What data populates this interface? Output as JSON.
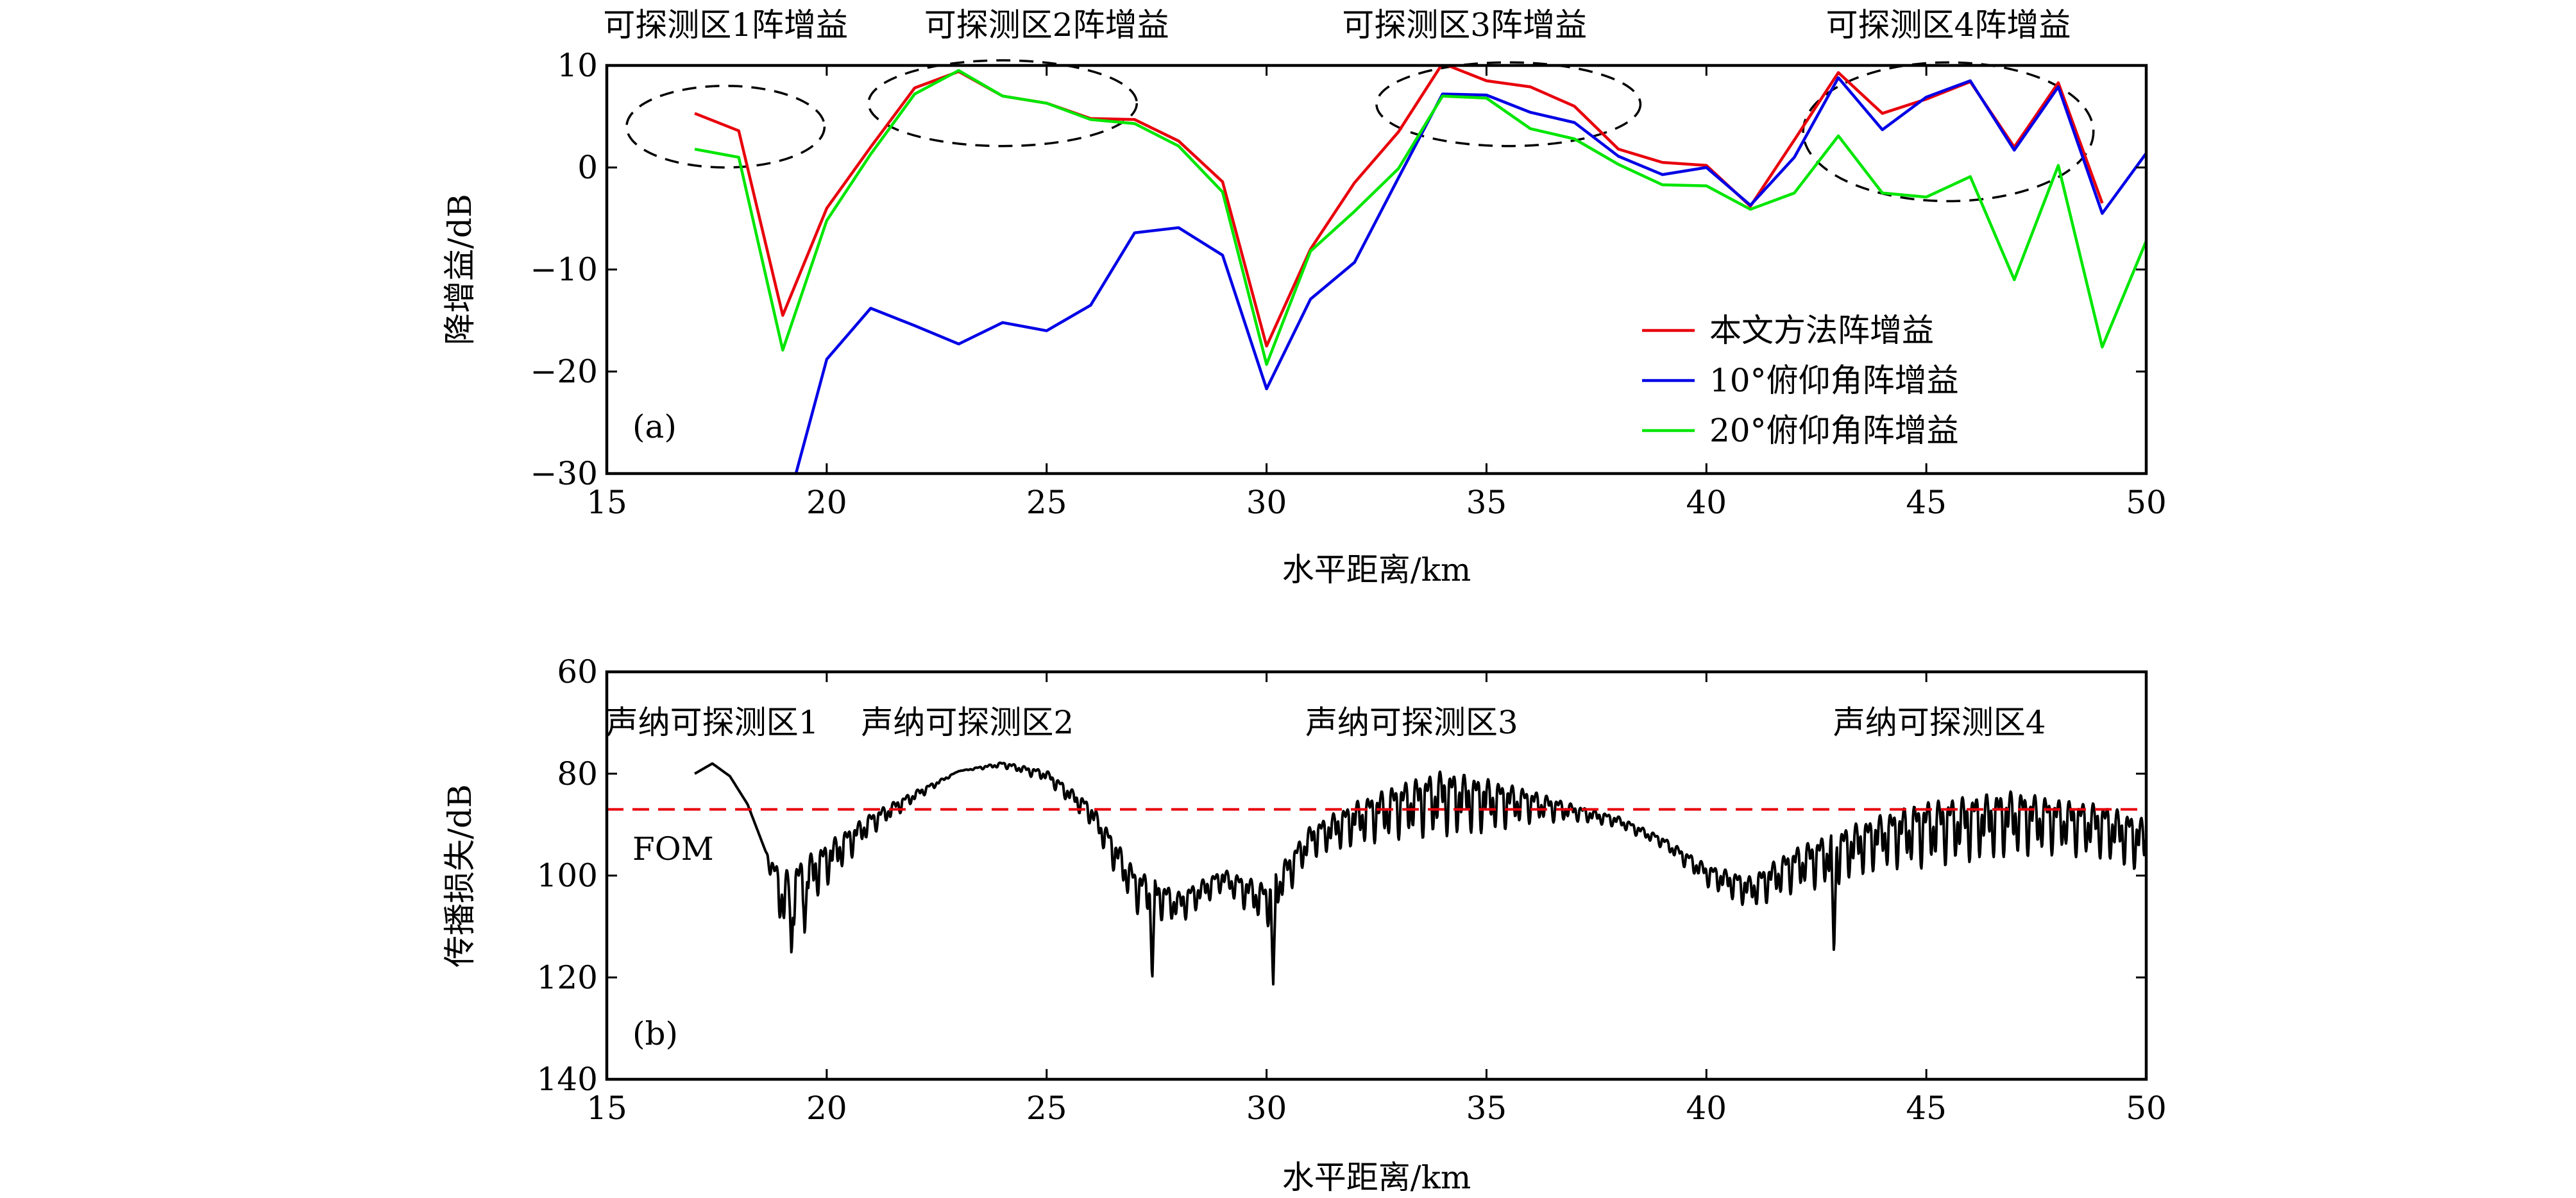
{
  "figure": {
    "panel_a_label": "(a)",
    "panel_b_label": "(b)",
    "fom_label": "FOM"
  },
  "chart_data": [
    {
      "type": "line",
      "panel": "(a)",
      "title": "",
      "xlabel": "水平距离/km",
      "ylabel": "降增益/dB",
      "xlim": [
        15,
        50
      ],
      "ylim": [
        -30,
        10
      ],
      "xticks": [
        15,
        20,
        25,
        30,
        35,
        40,
        45,
        50
      ],
      "yticks": [
        -30,
        -20,
        -10,
        0,
        10
      ],
      "grid": false,
      "legend_position": "center-right",
      "colors": {
        "axis": "#000000",
        "ellipse": "#000000"
      },
      "series": [
        {
          "name": "本文方法阵增益",
          "color": "#e8000b",
          "x": [
            17,
            18,
            19,
            20,
            21,
            22,
            23,
            24,
            25,
            26,
            27,
            28,
            29,
            30,
            31,
            32,
            33,
            34,
            35,
            36,
            37,
            38,
            39,
            40,
            41,
            42,
            43,
            44,
            45,
            46,
            47,
            48,
            49
          ],
          "y": [
            5.3,
            3.6,
            -14.5,
            -4,
            2,
            7.8,
            9.4,
            7,
            6.3,
            4.8,
            4.7,
            2.6,
            -1.4,
            -17.5,
            -8,
            -1.5,
            3.5,
            10.2,
            8.5,
            7.9,
            6,
            1.8,
            0.5,
            0.2,
            -3.8,
            2.7,
            9.3,
            5.3,
            6.7,
            8.4,
            2,
            8.3,
            -3.5
          ]
        },
        {
          "name": "10°俯仰角阵增益",
          "color": "#0000e6",
          "x": [
            19.3,
            20,
            21,
            22,
            23,
            24,
            25,
            26,
            27,
            28,
            29,
            30,
            31,
            32,
            33,
            34,
            35,
            36,
            37,
            38,
            39,
            40,
            41,
            42,
            43,
            44,
            45,
            46,
            47,
            48,
            49,
            50
          ],
          "y": [
            -30,
            -18.8,
            -13.8,
            -15.5,
            -17.3,
            -15.2,
            -16,
            -13.5,
            -6.4,
            -5.9,
            -8.6,
            -21.7,
            -12.9,
            -9.3,
            -1,
            7.2,
            7.1,
            5.4,
            4.4,
            1.1,
            -0.7,
            0,
            -3.7,
            1,
            8.8,
            3.7,
            6.9,
            8.5,
            1.7,
            7.9,
            -4.5,
            1.4
          ]
        },
        {
          "name": "20°俯仰角阵增益",
          "color": "#00e600",
          "x": [
            17,
            18,
            19,
            20,
            21,
            22,
            23,
            24,
            25,
            26,
            27,
            28,
            29,
            30,
            31,
            32,
            33,
            34,
            35,
            36,
            37,
            38,
            39,
            40,
            41,
            42,
            43,
            44,
            45,
            46,
            47,
            48,
            49,
            50
          ],
          "y": [
            1.8,
            1,
            -17.9,
            -5.2,
            1.3,
            7.2,
            9.5,
            7,
            6.3,
            4.7,
            4.3,
            2.1,
            -2.4,
            -19.3,
            -8.2,
            -4.3,
            -0.1,
            7,
            6.8,
            3.8,
            2.8,
            0.3,
            -1.7,
            -1.8,
            -4.1,
            -2.5,
            3.1,
            -2.5,
            -2.9,
            -0.9,
            -11,
            0.2,
            -17.6,
            -7.2
          ]
        }
      ],
      "annotations": [
        "可探测区1阵增益",
        "可探测区2阵增益",
        "可探测区3阵增益",
        "可探测区4阵增益"
      ],
      "highlight_ellipses": [
        {
          "center_x": 17.7,
          "center_y": 4,
          "radius_x": 2.25,
          "radius_y": 4
        },
        {
          "center_x": 24,
          "center_y": 6.3,
          "radius_x": 3.05,
          "radius_y": 4.2
        },
        {
          "center_x": 35.5,
          "center_y": 6.2,
          "radius_x": 3,
          "radius_y": 4.1
        },
        {
          "center_x": 45.5,
          "center_y": 3.5,
          "radius_x": 3.3,
          "radius_y": 6.8
        }
      ]
    },
    {
      "type": "line",
      "panel": "(b)",
      "title": "",
      "xlabel": "水平距离/km",
      "ylabel": "传播损失/dB",
      "xlim": [
        15,
        50
      ],
      "ylim": [
        140,
        60
      ],
      "y_inverted": true,
      "xticks": [
        15,
        20,
        25,
        30,
        35,
        40,
        45,
        50
      ],
      "yticks": [
        60,
        80,
        100,
        120,
        140
      ],
      "grid": false,
      "colors": {
        "axis": "#000000"
      },
      "series": [
        {
          "name": "",
          "color": "#000000",
          "oscillating": true,
          "x": [
            17,
            17.4,
            17.8,
            18.2,
            18.6,
            19,
            20,
            21,
            22,
            23,
            24,
            25,
            26,
            27,
            28,
            29,
            30,
            31,
            32,
            33,
            34,
            35,
            36,
            37,
            38,
            39,
            40,
            41,
            42,
            43,
            44,
            45,
            46,
            47,
            48,
            49,
            50
          ],
          "y": [
            80,
            78,
            80.5,
            86,
            95,
            103,
            96,
            89,
            84,
            79.5,
            78,
            80,
            87,
            101,
            105,
            100,
            104,
            92,
            88,
            85,
            83,
            84,
            85,
            87,
            89,
            93,
            99,
            102,
            97,
            94,
            91,
            89,
            88,
            87,
            88,
            89,
            92
          ],
          "amplitude": [
            0,
            0,
            0,
            0,
            0,
            6,
            4,
            2,
            1,
            0,
            0.5,
            1,
            2,
            4,
            3,
            2,
            4,
            3,
            4,
            5,
            6,
            5,
            3,
            1.5,
            1,
            1,
            2,
            3,
            4,
            5,
            5,
            6,
            6,
            6,
            5,
            5,
            5
          ]
        },
        {
          "name": "FOM",
          "color": "#e8000b",
          "style": "dashed",
          "x": [
            15,
            50
          ],
          "y": [
            87,
            87
          ]
        }
      ],
      "annotations": [
        "声纳可探测区1",
        "声纳可探测区2",
        "声纳可探测区3",
        "声纳可探测区4"
      ],
      "sharp_dips": [
        {
          "x": 19.2,
          "y": 116
        },
        {
          "x": 19.5,
          "y": 112
        },
        {
          "x": 27.4,
          "y": 121
        },
        {
          "x": 30.15,
          "y": 122
        },
        {
          "x": 42.9,
          "y": 116
        }
      ]
    }
  ]
}
